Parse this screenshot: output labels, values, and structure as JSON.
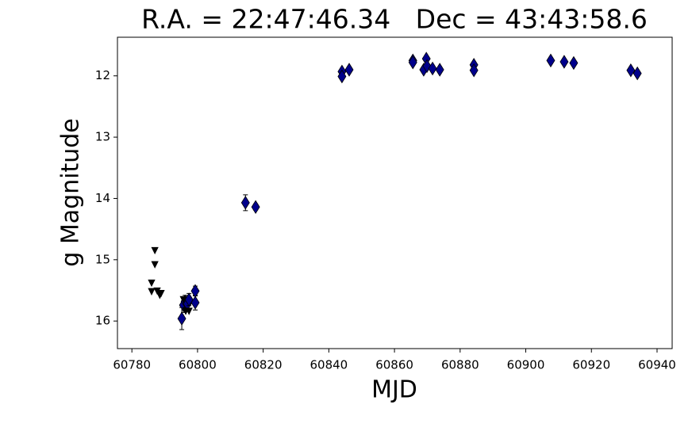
{
  "chart_data": {
    "type": "scatter",
    "title": "R.A. = 22:47:46.34   Dec = 43:43:58.6",
    "x_label": "MJD",
    "y_label": "g Magnitude",
    "xlim": [
      60775.6,
      60944.6
    ],
    "ylim": [
      11.37,
      16.45
    ],
    "y_inverted": true,
    "xticks": [
      60780,
      60800,
      60820,
      60840,
      60860,
      60880,
      60900,
      60920,
      60940
    ],
    "yticks": [
      12,
      13,
      14,
      15,
      16
    ],
    "series": [
      {
        "marker": "diamond",
        "color": "#00008b",
        "x": [
          60795.2,
          60795.7,
          60796.2,
          60796.9,
          60797.4,
          60799.3,
          60799.3,
          60814.6,
          60817.7,
          60844.0,
          60844.0,
          60846.2,
          60865.6,
          60865.6,
          60868.9,
          60869.7,
          60869.9,
          60871.6,
          60873.8,
          60884.2,
          60884.2,
          60907.6,
          60911.7,
          60914.6,
          60932.0,
          60934.0
        ],
        "values": [
          15.96,
          15.74,
          15.68,
          15.72,
          15.65,
          15.7,
          15.51,
          14.07,
          14.14,
          11.93,
          12.01,
          11.9,
          11.75,
          11.78,
          11.9,
          11.72,
          11.84,
          11.88,
          11.9,
          11.82,
          11.91,
          11.75,
          11.77,
          11.79,
          11.91,
          11.96
        ],
        "errors": [
          0.18,
          0.12,
          0.1,
          0.1,
          0.1,
          0.12,
          0.08,
          0.13,
          0.05,
          0.03,
          0.03,
          0.03,
          0.03,
          0.03,
          0.03,
          0.03,
          0.03,
          0.03,
          0.03,
          0.03,
          0.03,
          0.03,
          0.03,
          0.03,
          0.03,
          0.03
        ]
      },
      {
        "marker": "triangle-down",
        "color": "#000000",
        "x": [
          60787.0,
          60787.0,
          60786.0,
          60786.0,
          60787.7,
          60788.5,
          60788.9,
          60795.7,
          60796.4,
          60797.4
        ],
        "values": [
          14.85,
          15.08,
          15.38,
          15.52,
          15.51,
          15.58,
          15.55,
          15.65,
          15.84,
          15.84
        ]
      }
    ]
  }
}
